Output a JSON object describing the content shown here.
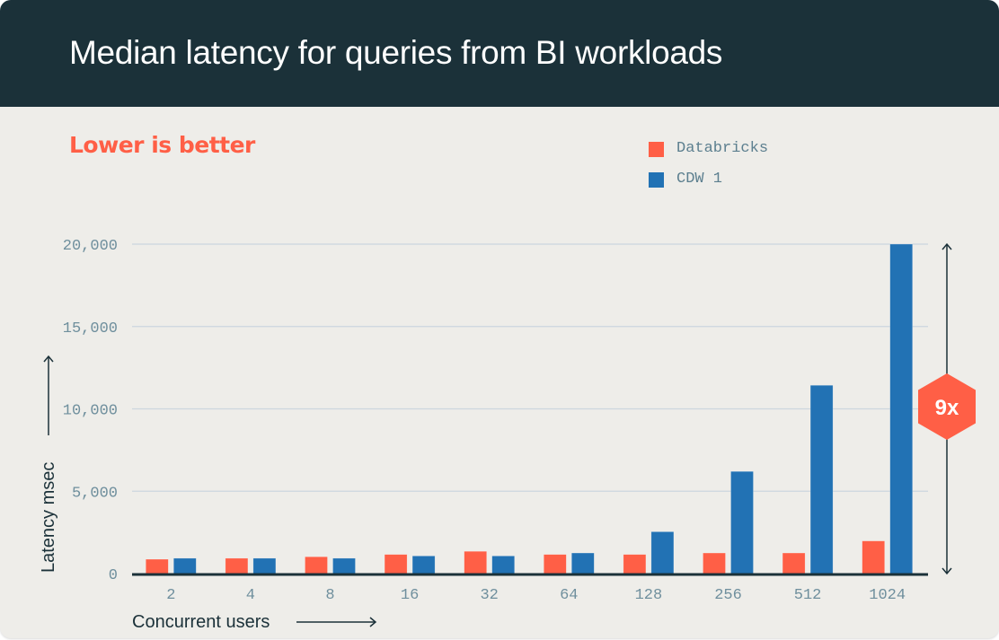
{
  "header": {
    "title": "Median latency for queries from BI workloads"
  },
  "subtitle": "Lower is better",
  "colors": {
    "header_bg": "#1b3139",
    "databricks": "#ff5f46",
    "cdw": "#2272b4",
    "grid": "#ccd6de",
    "axis": "#1b3139"
  },
  "chart_data": {
    "type": "bar",
    "title": "Median latency for queries from BI workloads",
    "subtitle": "Lower is better",
    "xlabel": "Concurrent users",
    "ylabel": "Latency msec",
    "ylim": [
      0,
      20000
    ],
    "grid": true,
    "legend_position": "top-right",
    "yticks": [
      0,
      5000,
      10000,
      15000,
      20000
    ],
    "ytick_labels": [
      "0",
      "5,000",
      "10,000",
      "15,000",
      "20,000"
    ],
    "categories": [
      "2",
      "4",
      "8",
      "16",
      "32",
      "64",
      "128",
      "256",
      "512",
      "1024"
    ],
    "series": [
      {
        "name": "Databricks",
        "color": "#ff5f46",
        "values": [
          870,
          930,
          1020,
          1160,
          1350,
          1160,
          1160,
          1250,
          1250,
          1980
        ]
      },
      {
        "name": "CDW 1",
        "color": "#2272b4",
        "values": [
          930,
          930,
          930,
          1070,
          1070,
          1250,
          2540,
          6200,
          11430,
          20000
        ]
      }
    ],
    "annotation": {
      "label": "9x",
      "range": [
        0,
        20000
      ]
    }
  }
}
